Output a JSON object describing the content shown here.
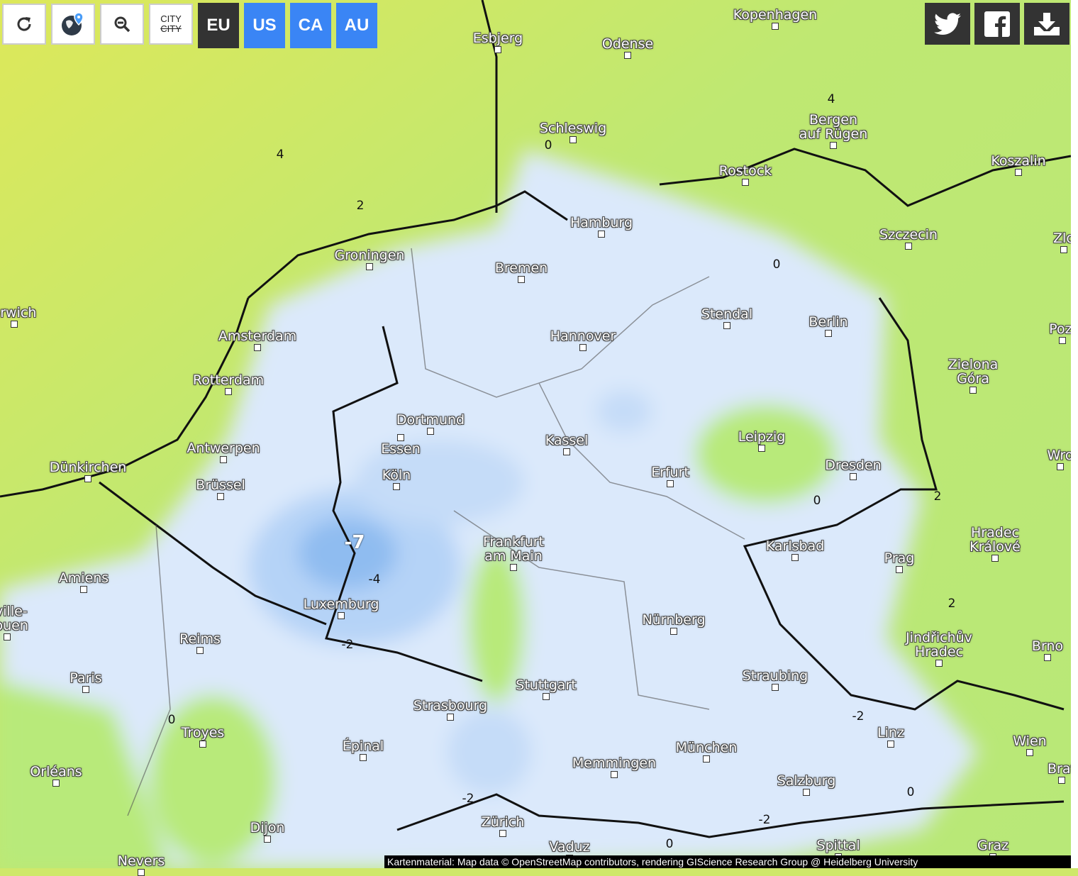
{
  "toolbar": {
    "buttons": [
      {
        "name": "reload",
        "icon": "refresh-icon"
      },
      {
        "name": "locate",
        "icon": "globe-location-icon"
      },
      {
        "name": "zoom-out",
        "icon": "zoom-out-icon"
      },
      {
        "name": "toggle-cities",
        "icon": "city-toggle-icon",
        "label_top": "CITY",
        "label_bottom": "CITY"
      }
    ],
    "regions": [
      {
        "label": "EU",
        "active": true
      },
      {
        "label": "US",
        "active": false
      },
      {
        "label": "CA",
        "active": false
      },
      {
        "label": "AU",
        "active": false
      }
    ],
    "region_colors": {
      "active": "#333333",
      "inactive": "#3a85f5"
    }
  },
  "share": [
    {
      "name": "twitter",
      "icon": "twitter-icon"
    },
    {
      "name": "facebook",
      "icon": "facebook-icon"
    },
    {
      "name": "download",
      "icon": "download-icon"
    }
  ],
  "cities": [
    "Kopenhagen",
    "Esbjerg",
    "Odense",
    "Schleswig",
    "Bergen\nauf Rügen",
    "Rostock",
    "Koszalin",
    "Hamburg",
    "Szczecin",
    "Groningen",
    "Bremen",
    "orwich",
    "Amsterdam",
    "Stendal",
    "Berlin",
    "Hannover",
    "Rotterdam",
    "Pozı",
    "Zielona\nGóra",
    "Dortmund",
    "Essen",
    "Kassel",
    "Leipzig",
    "Antwerpen",
    "Dünkirchen",
    "Köln",
    "Erfurt",
    "Dresden",
    "Wro",
    "Brüssel",
    "Karlsbad",
    "Frankfurt\nam Main",
    "Hradec\nKrálové",
    "Prag",
    "Amiens",
    "Luxemburg",
    "eville-\nRouen",
    "Reims",
    "Nürnberg",
    "Jindřichův\nHradec",
    "Brno",
    "Paris",
    "Straubing",
    "Stuttgart",
    "Strasbourg",
    "Troyes",
    "Épinal",
    "München",
    "Linz",
    "Wien",
    "Memmingen",
    "Orléans",
    "Salzburg",
    "Brat",
    "Zürich",
    "Dijon",
    "Vaduz",
    "Spittal",
    "Graz",
    "Nevers",
    "Zlo"
  ],
  "contour_labels": [
    "4",
    "2",
    "0",
    "4",
    "0",
    "0",
    "2",
    "2",
    "-7",
    "-4",
    "-2",
    "0",
    "-2",
    "-2",
    "-2",
    "0",
    "0"
  ],
  "colors": {
    "warm": "#d6e85a",
    "mild": "#b3ec7a",
    "cold": "#dbe9fb",
    "colder": "#b5d3f7",
    "coldest": "#7fb1ee"
  },
  "attribution": "Kartenmaterial: Map data © OpenStreetMap contributors, rendering GIScience Research Group @ Heidelberg University"
}
